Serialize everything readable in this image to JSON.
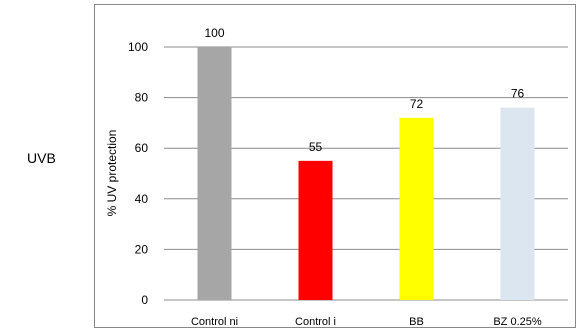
{
  "side_label": "UVB",
  "chart_data": {
    "type": "bar",
    "categories": [
      "Control ni",
      "Control i",
      "BB",
      "BZ 0.25%"
    ],
    "values": [
      100,
      55,
      72,
      76
    ],
    "data_labels": [
      "100",
      "55",
      "72",
      "76"
    ],
    "colors": [
      "#a6a6a6",
      "#ff0000",
      "#ffff00",
      "#dce6f1"
    ],
    "ylabel": "% UV protection",
    "xlabel": "",
    "ylim": [
      0,
      100
    ],
    "yticks": [
      0,
      20,
      40,
      60,
      80,
      100
    ],
    "grid": true,
    "legend": "none"
  }
}
